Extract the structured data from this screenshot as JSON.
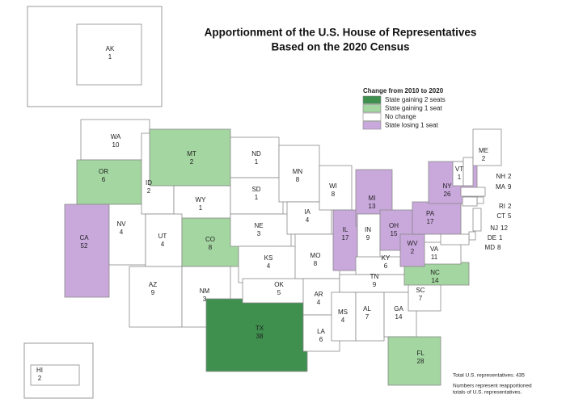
{
  "title": [
    "Apportionment of the U.S. House of Representatives",
    "Based on the 2020 Census"
  ],
  "legend": {
    "title": "Change from 2010 to 2020",
    "items": [
      {
        "label": "State gaining 2 seats",
        "color": "#3f8f4f"
      },
      {
        "label": "State gaining 1 seat",
        "color": "#a3d6a0"
      },
      {
        "label": "No change",
        "color": "#ffffff"
      },
      {
        "label": "State losing 1 seat",
        "color": "#c9a8dc"
      }
    ]
  },
  "states": [
    {
      "abbr": "AK",
      "seats": 1,
      "color": "#ffffff"
    },
    {
      "abbr": "HI",
      "seats": 2,
      "color": "#ffffff"
    },
    {
      "abbr": "WA",
      "seats": 10,
      "color": "#ffffff"
    },
    {
      "abbr": "OR",
      "seats": 6,
      "color": "#a3d6a0"
    },
    {
      "abbr": "CA",
      "seats": 52,
      "color": "#c9a8dc"
    },
    {
      "abbr": "NV",
      "seats": 4,
      "color": "#ffffff"
    },
    {
      "abbr": "ID",
      "seats": 2,
      "color": "#ffffff"
    },
    {
      "abbr": "MT",
      "seats": 2,
      "color": "#a3d6a0"
    },
    {
      "abbr": "WY",
      "seats": 1,
      "color": "#ffffff"
    },
    {
      "abbr": "UT",
      "seats": 4,
      "color": "#ffffff"
    },
    {
      "abbr": "AZ",
      "seats": 9,
      "color": "#ffffff"
    },
    {
      "abbr": "CO",
      "seats": 8,
      "color": "#a3d6a0"
    },
    {
      "abbr": "NM",
      "seats": 3,
      "color": "#ffffff"
    },
    {
      "abbr": "ND",
      "seats": 1,
      "color": "#ffffff"
    },
    {
      "abbr": "SD",
      "seats": 1,
      "color": "#ffffff"
    },
    {
      "abbr": "NE",
      "seats": 3,
      "color": "#ffffff"
    },
    {
      "abbr": "KS",
      "seats": 4,
      "color": "#ffffff"
    },
    {
      "abbr": "TX",
      "seats": 38,
      "color": "#3f8f4f"
    },
    {
      "abbr": "OK",
      "seats": 5,
      "color": "#ffffff"
    },
    {
      "abbr": "MN",
      "seats": 8,
      "color": "#ffffff"
    },
    {
      "abbr": "IA",
      "seats": 4,
      "color": "#ffffff"
    },
    {
      "abbr": "MO",
      "seats": 8,
      "color": "#ffffff"
    },
    {
      "abbr": "AR",
      "seats": 4,
      "color": "#ffffff"
    },
    {
      "abbr": "LA",
      "seats": 6,
      "color": "#ffffff"
    },
    {
      "abbr": "WI",
      "seats": 8,
      "color": "#ffffff"
    },
    {
      "abbr": "IL",
      "seats": 17,
      "color": "#c9a8dc"
    },
    {
      "abbr": "MI",
      "seats": 13,
      "color": "#c9a8dc"
    },
    {
      "abbr": "IN",
      "seats": 9,
      "color": "#ffffff"
    },
    {
      "abbr": "OH",
      "seats": 15,
      "color": "#c9a8dc"
    },
    {
      "abbr": "KY",
      "seats": 6,
      "color": "#ffffff"
    },
    {
      "abbr": "TN",
      "seats": 9,
      "color": "#ffffff"
    },
    {
      "abbr": "MS",
      "seats": 4,
      "color": "#ffffff"
    },
    {
      "abbr": "AL",
      "seats": 7,
      "color": "#ffffff"
    },
    {
      "abbr": "GA",
      "seats": 14,
      "color": "#ffffff"
    },
    {
      "abbr": "FL",
      "seats": 28,
      "color": "#a3d6a0"
    },
    {
      "abbr": "SC",
      "seats": 7,
      "color": "#ffffff"
    },
    {
      "abbr": "NC",
      "seats": 14,
      "color": "#a3d6a0"
    },
    {
      "abbr": "VA",
      "seats": 11,
      "color": "#ffffff"
    },
    {
      "abbr": "WV",
      "seats": 2,
      "color": "#c9a8dc"
    },
    {
      "abbr": "PA",
      "seats": 17,
      "color": "#c9a8dc"
    },
    {
      "abbr": "NY",
      "seats": 26,
      "color": "#c9a8dc"
    },
    {
      "abbr": "VT",
      "seats": 1,
      "color": "#ffffff"
    },
    {
      "abbr": "NH",
      "seats": 2,
      "color": "#ffffff"
    },
    {
      "abbr": "MA",
      "seats": 9,
      "color": "#ffffff"
    },
    {
      "abbr": "RI",
      "seats": 2,
      "color": "#ffffff"
    },
    {
      "abbr": "CT",
      "seats": 5,
      "color": "#ffffff"
    },
    {
      "abbr": "NJ",
      "seats": 12,
      "color": "#ffffff"
    },
    {
      "abbr": "DE",
      "seats": 1,
      "color": "#ffffff"
    },
    {
      "abbr": "MD",
      "seats": 8,
      "color": "#ffffff"
    },
    {
      "abbr": "ME",
      "seats": 2,
      "color": "#ffffff"
    }
  ],
  "notes": [
    "Total U.S. representatives: 435",
    "Numbers represent reapportioned",
    "totals of U.S. representatives."
  ]
}
